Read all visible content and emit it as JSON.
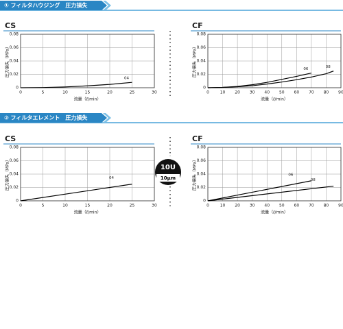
{
  "sections": [
    {
      "title": "① フィルタハウジング　圧力損失"
    },
    {
      "title": "② フィルタエレメント　圧力損失"
    }
  ],
  "badge": {
    "top": "10U",
    "bottom": "10μm"
  },
  "chart_data": [
    {
      "type": "line",
      "title": "CS",
      "xlabel": "流量（ℓ/min）",
      "ylabel": "圧力損失（MPa）",
      "xlim": [
        0,
        30
      ],
      "xticks": [
        0,
        5,
        10,
        15,
        20,
        25,
        30
      ],
      "ylim": [
        0,
        0.08
      ],
      "yticks": [
        0,
        0.02,
        0.04,
        0.06,
        0.08
      ],
      "grid": true,
      "series": [
        {
          "name": "04",
          "color": "#000000",
          "x": [
            0,
            5,
            10,
            15,
            20,
            25
          ],
          "values": [
            0,
            0.0003,
            0.0012,
            0.0028,
            0.005,
            0.008
          ]
        }
      ]
    },
    {
      "type": "line",
      "title": "CF",
      "xlabel": "流量（ℓ/min）",
      "ylabel": "圧力損失（MPa）",
      "xlim": [
        0,
        90
      ],
      "xticks": [
        0,
        10,
        20,
        30,
        40,
        50,
        60,
        70,
        80,
        90
      ],
      "ylim": [
        0,
        0.08
      ],
      "yticks": [
        0,
        0.02,
        0.04,
        0.06,
        0.08
      ],
      "grid": true,
      "series": [
        {
          "name": "06",
          "color": "#000000",
          "x": [
            0,
            10,
            20,
            30,
            40,
            50,
            60,
            70
          ],
          "values": [
            0,
            0.0005,
            0.002,
            0.0045,
            0.008,
            0.0125,
            0.017,
            0.022
          ]
        },
        {
          "name": "08",
          "color": "#000000",
          "x": [
            0,
            10,
            20,
            30,
            40,
            50,
            60,
            70,
            80,
            85
          ],
          "values": [
            0,
            0.0005,
            0.0015,
            0.003,
            0.0055,
            0.0085,
            0.012,
            0.016,
            0.021,
            0.025
          ]
        }
      ]
    },
    {
      "type": "line",
      "title": "CS",
      "xlabel": "流量（ℓ/min）",
      "ylabel": "圧力損失（MPa）",
      "xlim": [
        0,
        30
      ],
      "xticks": [
        0,
        5,
        10,
        15,
        20,
        25,
        30
      ],
      "ylim": [
        0,
        0.08
      ],
      "yticks": [
        0,
        0.02,
        0.04,
        0.06,
        0.08
      ],
      "grid": true,
      "series": [
        {
          "name": "04",
          "color": "#000000",
          "x": [
            0,
            25
          ],
          "values": [
            0,
            0.025
          ]
        }
      ]
    },
    {
      "type": "line",
      "title": "CF",
      "xlabel": "流量（ℓ/min）",
      "ylabel": "圧力損失（MPa）",
      "xlim": [
        0,
        90
      ],
      "xticks": [
        0,
        10,
        20,
        30,
        40,
        50,
        60,
        70,
        80,
        90
      ],
      "ylim": [
        0,
        0.08
      ],
      "yticks": [
        0,
        0.02,
        0.04,
        0.06,
        0.08
      ],
      "grid": true,
      "series": [
        {
          "name": "06",
          "color": "#000000",
          "x": [
            0,
            70
          ],
          "values": [
            0,
            0.03
          ]
        },
        {
          "name": "08",
          "color": "#000000",
          "x": [
            0,
            85
          ],
          "values": [
            0,
            0.022
          ]
        }
      ]
    }
  ]
}
